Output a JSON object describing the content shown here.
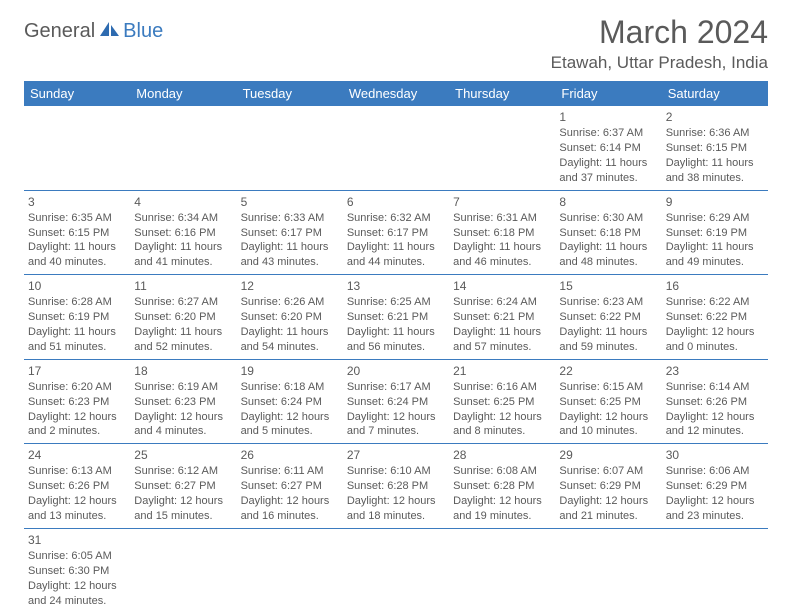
{
  "logo": {
    "text1": "General",
    "text2": "Blue"
  },
  "title": "March 2024",
  "location": "Etawah, Uttar Pradesh, India",
  "colors": {
    "header_bg": "#3b7bbf",
    "header_fg": "#ffffff",
    "text": "#5a5a5a",
    "border": "#3b7bbf",
    "background": "#ffffff"
  },
  "weekdays": [
    "Sunday",
    "Monday",
    "Tuesday",
    "Wednesday",
    "Thursday",
    "Friday",
    "Saturday"
  ],
  "weeks": [
    [
      null,
      null,
      null,
      null,
      null,
      {
        "d": "1",
        "sr": "6:37 AM",
        "ss": "6:14 PM",
        "dl": "11 hours and 37 minutes."
      },
      {
        "d": "2",
        "sr": "6:36 AM",
        "ss": "6:15 PM",
        "dl": "11 hours and 38 minutes."
      }
    ],
    [
      {
        "d": "3",
        "sr": "6:35 AM",
        "ss": "6:15 PM",
        "dl": "11 hours and 40 minutes."
      },
      {
        "d": "4",
        "sr": "6:34 AM",
        "ss": "6:16 PM",
        "dl": "11 hours and 41 minutes."
      },
      {
        "d": "5",
        "sr": "6:33 AM",
        "ss": "6:17 PM",
        "dl": "11 hours and 43 minutes."
      },
      {
        "d": "6",
        "sr": "6:32 AM",
        "ss": "6:17 PM",
        "dl": "11 hours and 44 minutes."
      },
      {
        "d": "7",
        "sr": "6:31 AM",
        "ss": "6:18 PM",
        "dl": "11 hours and 46 minutes."
      },
      {
        "d": "8",
        "sr": "6:30 AM",
        "ss": "6:18 PM",
        "dl": "11 hours and 48 minutes."
      },
      {
        "d": "9",
        "sr": "6:29 AM",
        "ss": "6:19 PM",
        "dl": "11 hours and 49 minutes."
      }
    ],
    [
      {
        "d": "10",
        "sr": "6:28 AM",
        "ss": "6:19 PM",
        "dl": "11 hours and 51 minutes."
      },
      {
        "d": "11",
        "sr": "6:27 AM",
        "ss": "6:20 PM",
        "dl": "11 hours and 52 minutes."
      },
      {
        "d": "12",
        "sr": "6:26 AM",
        "ss": "6:20 PM",
        "dl": "11 hours and 54 minutes."
      },
      {
        "d": "13",
        "sr": "6:25 AM",
        "ss": "6:21 PM",
        "dl": "11 hours and 56 minutes."
      },
      {
        "d": "14",
        "sr": "6:24 AM",
        "ss": "6:21 PM",
        "dl": "11 hours and 57 minutes."
      },
      {
        "d": "15",
        "sr": "6:23 AM",
        "ss": "6:22 PM",
        "dl": "11 hours and 59 minutes."
      },
      {
        "d": "16",
        "sr": "6:22 AM",
        "ss": "6:22 PM",
        "dl": "12 hours and 0 minutes."
      }
    ],
    [
      {
        "d": "17",
        "sr": "6:20 AM",
        "ss": "6:23 PM",
        "dl": "12 hours and 2 minutes."
      },
      {
        "d": "18",
        "sr": "6:19 AM",
        "ss": "6:23 PM",
        "dl": "12 hours and 4 minutes."
      },
      {
        "d": "19",
        "sr": "6:18 AM",
        "ss": "6:24 PM",
        "dl": "12 hours and 5 minutes."
      },
      {
        "d": "20",
        "sr": "6:17 AM",
        "ss": "6:24 PM",
        "dl": "12 hours and 7 minutes."
      },
      {
        "d": "21",
        "sr": "6:16 AM",
        "ss": "6:25 PM",
        "dl": "12 hours and 8 minutes."
      },
      {
        "d": "22",
        "sr": "6:15 AM",
        "ss": "6:25 PM",
        "dl": "12 hours and 10 minutes."
      },
      {
        "d": "23",
        "sr": "6:14 AM",
        "ss": "6:26 PM",
        "dl": "12 hours and 12 minutes."
      }
    ],
    [
      {
        "d": "24",
        "sr": "6:13 AM",
        "ss": "6:26 PM",
        "dl": "12 hours and 13 minutes."
      },
      {
        "d": "25",
        "sr": "6:12 AM",
        "ss": "6:27 PM",
        "dl": "12 hours and 15 minutes."
      },
      {
        "d": "26",
        "sr": "6:11 AM",
        "ss": "6:27 PM",
        "dl": "12 hours and 16 minutes."
      },
      {
        "d": "27",
        "sr": "6:10 AM",
        "ss": "6:28 PM",
        "dl": "12 hours and 18 minutes."
      },
      {
        "d": "28",
        "sr": "6:08 AM",
        "ss": "6:28 PM",
        "dl": "12 hours and 19 minutes."
      },
      {
        "d": "29",
        "sr": "6:07 AM",
        "ss": "6:29 PM",
        "dl": "12 hours and 21 minutes."
      },
      {
        "d": "30",
        "sr": "6:06 AM",
        "ss": "6:29 PM",
        "dl": "12 hours and 23 minutes."
      }
    ],
    [
      {
        "d": "31",
        "sr": "6:05 AM",
        "ss": "6:30 PM",
        "dl": "12 hours and 24 minutes."
      },
      null,
      null,
      null,
      null,
      null,
      null
    ]
  ],
  "labels": {
    "sunrise": "Sunrise:",
    "sunset": "Sunset:",
    "daylight": "Daylight:"
  }
}
